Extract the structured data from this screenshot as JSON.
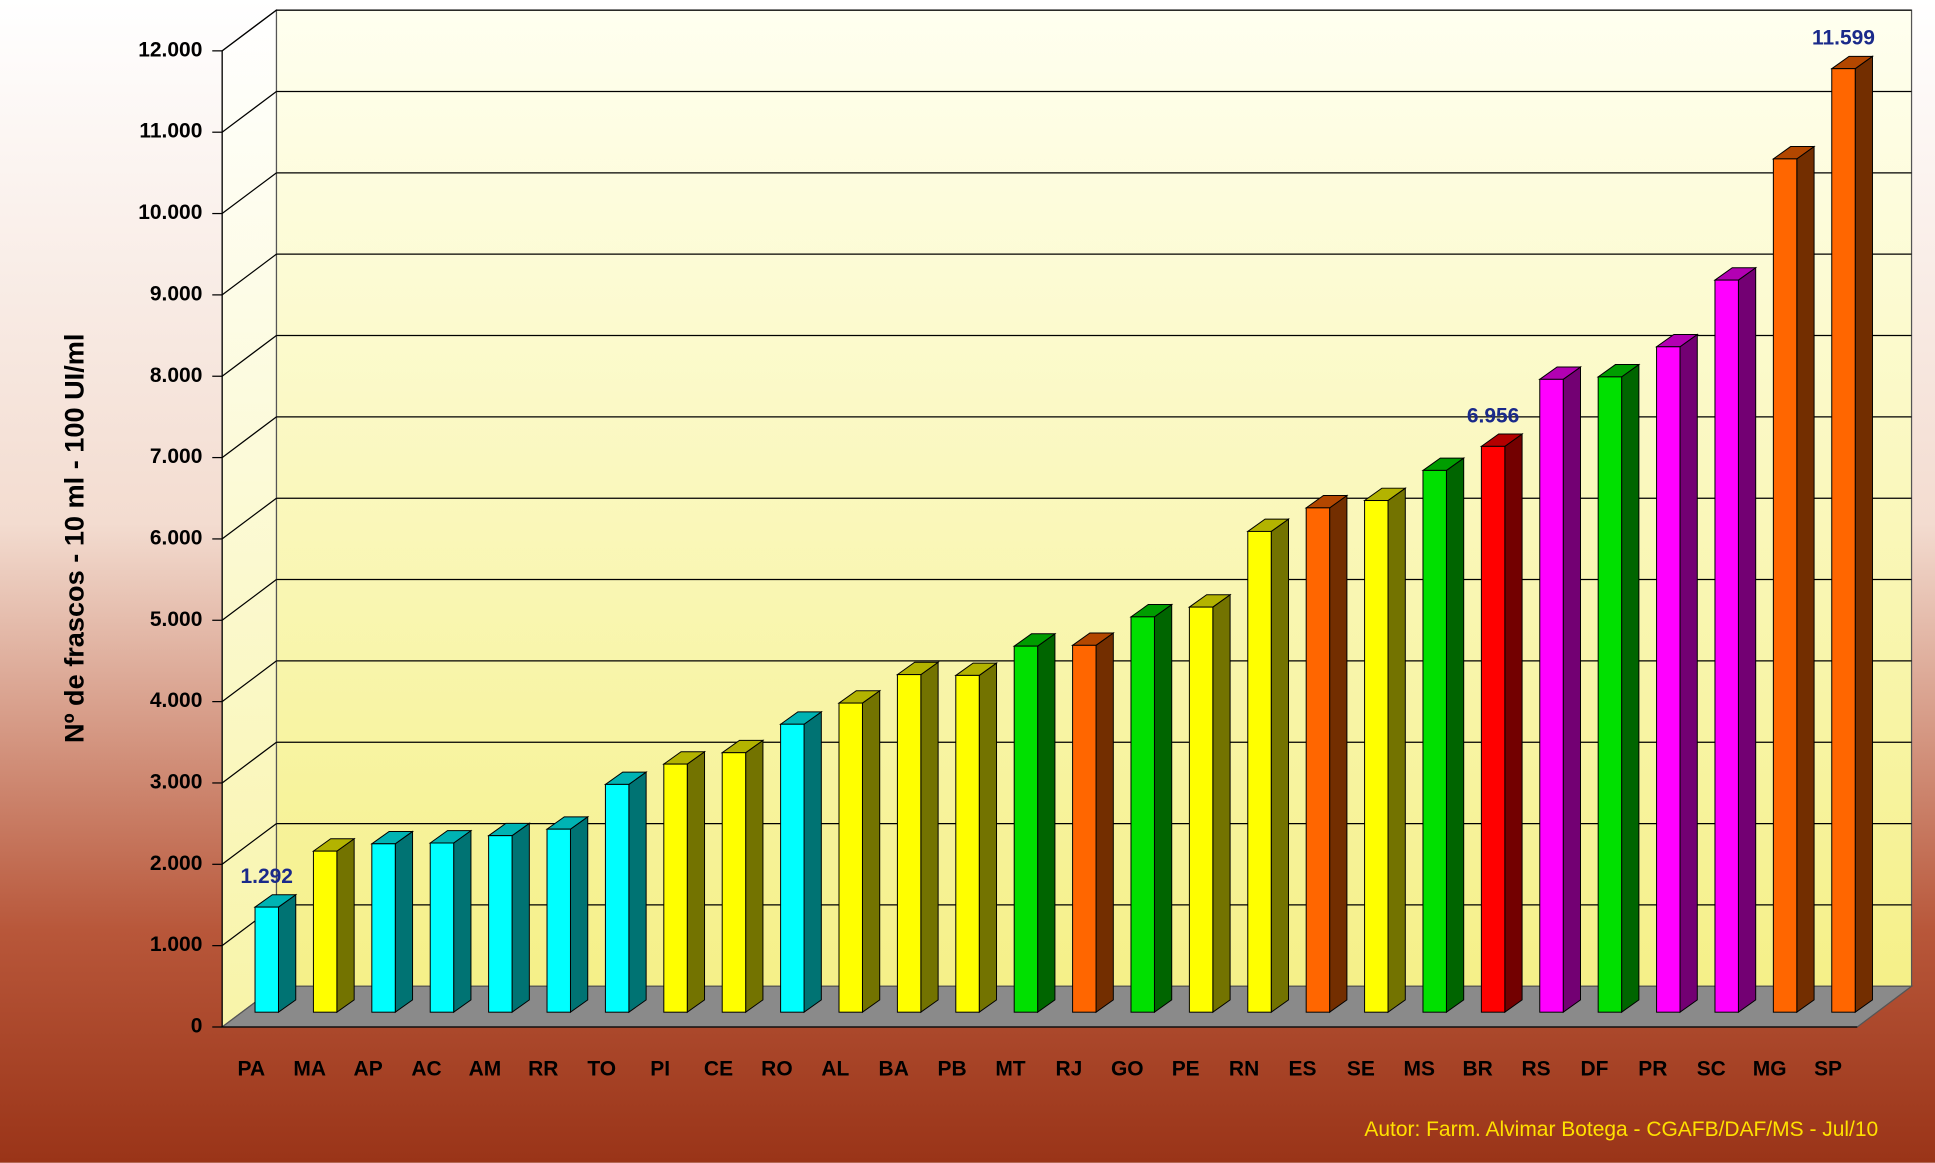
{
  "chart_data": {
    "type": "bar3d",
    "y_axis_label": "Nº de frascos - 10 ml - 100 UI/ml",
    "annotation": "Autor: Farm. Alvimar Botega - CGAFB/DAF/MS - Jul/10",
    "categories": [
      "PA",
      "MA",
      "AP",
      "AC",
      "AM",
      "RR",
      "TO",
      "PI",
      "CE",
      "RO",
      "AL",
      "BA",
      "PB",
      "MT",
      "RJ",
      "GO",
      "PE",
      "RN",
      "ES",
      "SE",
      "MS",
      "BR",
      "RS",
      "DF",
      "PR",
      "SC",
      "MG",
      "SP"
    ],
    "values": [
      1292,
      1980,
      2070,
      2080,
      2170,
      2250,
      2800,
      3050,
      3190,
      3540,
      3800,
      4150,
      4140,
      4500,
      4510,
      4860,
      4980,
      5910,
      6200,
      6290,
      6660,
      6956,
      7780,
      7810,
      8180,
      9000,
      10490,
      11599
    ],
    "value_labels": [
      "1.292",
      null,
      null,
      null,
      null,
      null,
      null,
      null,
      null,
      null,
      null,
      null,
      null,
      null,
      null,
      null,
      null,
      null,
      null,
      null,
      null,
      "6.956",
      null,
      null,
      null,
      null,
      null,
      "11.599"
    ],
    "colors": [
      "#00ffff",
      "#ffff00",
      "#00ffff",
      "#00ffff",
      "#00ffff",
      "#00ffff",
      "#00ffff",
      "#ffff00",
      "#ffff00",
      "#00ffff",
      "#ffff00",
      "#ffff00",
      "#ffff00",
      "#00e000",
      "#ff6600",
      "#00e000",
      "#ffff00",
      "#ffff00",
      "#ff6600",
      "#ffff00",
      "#00e000",
      "#ff0000",
      "#ff00ff",
      "#00e000",
      "#ff00ff",
      "#ff00ff",
      "#ff6600",
      "#ff6600"
    ],
    "ylim": [
      0,
      12000
    ],
    "yticks": [
      0,
      {
        "value": 1000,
        "label": "1.000"
      },
      {
        "value": 2000,
        "label": "2.000"
      },
      {
        "value": 3000,
        "label": "3.000"
      },
      {
        "value": 4000,
        "label": "4.000"
      },
      {
        "value": 5000,
        "label": "5.000"
      },
      {
        "value": 6000,
        "label": "6.000"
      },
      {
        "value": 7000,
        "label": "7.000"
      },
      {
        "value": 8000,
        "label": "8.000"
      },
      {
        "value": 9000,
        "label": "9.000"
      },
      {
        "value": 10000,
        "label": "10.000"
      },
      {
        "value": 11000,
        "label": "11.000"
      },
      {
        "value": 12000,
        "label": "12.000"
      }
    ],
    "grid": true
  }
}
